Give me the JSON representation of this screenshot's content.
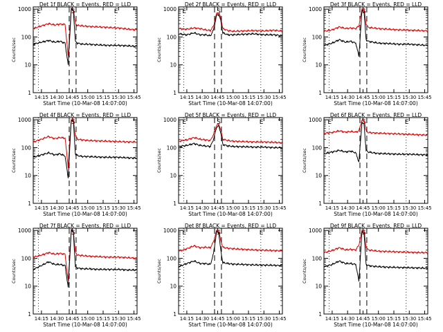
{
  "colors": {
    "events": "#000000",
    "lld": "#e00000",
    "axis": "#000000",
    "background": "#ffffff"
  },
  "chart_data": [
    {
      "type": "line",
      "title": "Det 1f BLACK = Events, RED = LLD",
      "ylabel": "Counts/sec",
      "xlabel": "Start Time (10-Mar-08 14:07:00)",
      "x_ticks": [
        "14:15",
        "14:30",
        "14:45",
        "15:00",
        "15:15",
        "15:30",
        "15:45"
      ],
      "y_ticks": [
        "1",
        "10",
        "100",
        "1000"
      ],
      "ylim": [
        1,
        1200
      ],
      "yscale": "log",
      "x": [
        "14:07",
        "14:15",
        "14:22",
        "14:28",
        "14:33",
        "14:38",
        "14:41",
        "14:44",
        "14:46",
        "14:48",
        "14:50",
        "14:55",
        "15:00",
        "15:10",
        "15:20",
        "15:30",
        "15:40",
        "15:48"
      ],
      "series": [
        {
          "name": "LLD",
          "values": [
            200,
            250,
            300,
            270,
            290,
            280,
            20,
            1000,
            1000,
            300,
            260,
            250,
            240,
            230,
            220,
            210,
            190,
            180
          ]
        },
        {
          "name": "Events",
          "values": [
            55,
            65,
            75,
            65,
            70,
            60,
            10,
            1000,
            900,
            70,
            60,
            55,
            55,
            52,
            50,
            50,
            48,
            45
          ]
        }
      ],
      "annotations": [
        "E",
        "S",
        "E"
      ]
    },
    {
      "type": "line",
      "title": "Det 2f BLACK = Events, RED = LLD",
      "ylabel": "Counts/sec",
      "xlabel": "Start Time (10-Mar-08 14:07:00)",
      "x_ticks": [
        "14:15",
        "14:30",
        "14:45",
        "15:00",
        "15:15",
        "15:30",
        "15:45"
      ],
      "y_ticks": [
        "1",
        "10",
        "100",
        "1000"
      ],
      "ylim": [
        1,
        1200
      ],
      "yscale": "log",
      "x": [
        "14:07",
        "14:15",
        "14:22",
        "14:28",
        "14:33",
        "14:38",
        "14:41",
        "14:44",
        "14:46",
        "14:48",
        "14:50",
        "14:55",
        "15:00",
        "15:10",
        "15:20",
        "15:30",
        "15:40",
        "15:48"
      ],
      "series": [
        {
          "name": "LLD",
          "values": [
            200,
            190,
            210,
            200,
            180,
            170,
            250,
            700,
            750,
            500,
            200,
            170,
            160,
            165,
            170,
            165,
            175,
            160
          ]
        },
        {
          "name": "Events",
          "values": [
            130,
            120,
            140,
            120,
            120,
            110,
            180,
            600,
            650,
            400,
            140,
            120,
            120,
            125,
            130,
            120,
            120,
            110
          ]
        }
      ],
      "annotations": [
        "E",
        "S",
        "E"
      ]
    },
    {
      "type": "line",
      "title": "Det 3f BLACK = Events, RED = LLD",
      "ylabel": "Counts/sec",
      "xlabel": "Start Time (10-Mar-08 14:07:00)",
      "x_ticks": [
        "14:15",
        "14:30",
        "14:45",
        "15:00",
        "15:15",
        "15:30",
        "15:45"
      ],
      "y_ticks": [
        "1",
        "10",
        "100",
        "1000"
      ],
      "ylim": [
        1,
        1200
      ],
      "yscale": "log",
      "x": [
        "14:07",
        "14:15",
        "14:22",
        "14:28",
        "14:33",
        "14:38",
        "14:41",
        "14:44",
        "14:46",
        "14:48",
        "14:50",
        "14:55",
        "15:00",
        "15:10",
        "15:20",
        "15:30",
        "15:40",
        "15:48"
      ],
      "series": [
        {
          "name": "LLD",
          "values": [
            160,
            180,
            230,
            200,
            210,
            200,
            250,
            1000,
            1000,
            300,
            220,
            210,
            200,
            190,
            180,
            175,
            170,
            165
          ]
        },
        {
          "name": "Events",
          "values": [
            50,
            60,
            80,
            65,
            70,
            60,
            20,
            900,
            800,
            80,
            70,
            65,
            60,
            58,
            55,
            55,
            52,
            50
          ]
        }
      ],
      "annotations": [
        "E",
        "S",
        "E"
      ]
    },
    {
      "type": "line",
      "title": "Det 4f BLACK = Events, RED = LLD",
      "ylabel": "Counts/sec",
      "xlabel": "Start Time (10-Mar-08 14:07:00)",
      "x_ticks": [
        "14:15",
        "14:30",
        "14:45",
        "15:00",
        "15:15",
        "15:30",
        "15:45"
      ],
      "y_ticks": [
        "1",
        "10",
        "100",
        "1000"
      ],
      "ylim": [
        1,
        1200
      ],
      "yscale": "log",
      "x": [
        "14:07",
        "14:15",
        "14:22",
        "14:28",
        "14:33",
        "14:38",
        "14:41",
        "14:44",
        "14:46",
        "14:48",
        "14:50",
        "14:55",
        "15:00",
        "15:10",
        "15:20",
        "15:30",
        "15:40",
        "15:48"
      ],
      "series": [
        {
          "name": "LLD",
          "values": [
            160,
            200,
            250,
            210,
            230,
            220,
            20,
            1000,
            1000,
            270,
            200,
            190,
            180,
            175,
            170,
            165,
            160,
            160
          ]
        },
        {
          "name": "Events",
          "values": [
            45,
            55,
            65,
            55,
            60,
            50,
            8,
            1000,
            900,
            60,
            52,
            48,
            48,
            46,
            45,
            45,
            43,
            42
          ]
        }
      ],
      "annotations": [
        "E",
        "S",
        "E"
      ]
    },
    {
      "type": "line",
      "title": "Det 5f BLACK = Events, RED = LLD",
      "ylabel": "Counts/sec",
      "xlabel": "Start Time (10-Mar-08 14:07:00)",
      "x_ticks": [
        "14:15",
        "14:30",
        "14:45",
        "15:00",
        "15:15",
        "15:30",
        "15:45"
      ],
      "y_ticks": [
        "1",
        "10",
        "100",
        "1000"
      ],
      "ylim": [
        1,
        1200
      ],
      "yscale": "log",
      "x": [
        "14:07",
        "14:15",
        "14:22",
        "14:28",
        "14:33",
        "14:38",
        "14:41",
        "14:44",
        "14:46",
        "14:48",
        "14:50",
        "14:55",
        "15:00",
        "15:10",
        "15:20",
        "15:30",
        "15:40",
        "15:48"
      ],
      "series": [
        {
          "name": "LLD",
          "values": [
            170,
            190,
            230,
            200,
            190,
            180,
            300,
            650,
            700,
            450,
            200,
            180,
            170,
            165,
            160,
            160,
            155,
            150
          ]
        },
        {
          "name": "Events",
          "values": [
            110,
            120,
            140,
            120,
            115,
            110,
            200,
            550,
            600,
            350,
            130,
            115,
            110,
            108,
            105,
            105,
            100,
            100
          ]
        }
      ],
      "annotations": [
        "E",
        "S",
        "E"
      ]
    },
    {
      "type": "line",
      "title": "Det 6f BLACK = Events, RED = LLD",
      "ylabel": "Counts/sec",
      "xlabel": "Start Time (10-Mar-08 14:07:00)",
      "x_ticks": [
        "14:15",
        "14:30",
        "14:45",
        "15:00",
        "15:15",
        "15:30",
        "15:45"
      ],
      "y_ticks": [
        "1",
        "10",
        "100",
        "1000"
      ],
      "ylim": [
        1,
        1200
      ],
      "yscale": "log",
      "x": [
        "14:07",
        "14:15",
        "14:22",
        "14:28",
        "14:33",
        "14:38",
        "14:41",
        "14:44",
        "14:46",
        "14:48",
        "14:50",
        "14:55",
        "15:00",
        "15:10",
        "15:20",
        "15:30",
        "15:40",
        "15:48"
      ],
      "series": [
        {
          "name": "LLD",
          "values": [
            330,
            350,
            400,
            360,
            380,
            360,
            400,
            1000,
            1000,
            400,
            350,
            340,
            330,
            320,
            310,
            300,
            290,
            280
          ]
        },
        {
          "name": "Events",
          "values": [
            60,
            70,
            80,
            70,
            75,
            65,
            30,
            800,
            700,
            80,
            70,
            65,
            62,
            60,
            58,
            58,
            56,
            55
          ]
        }
      ],
      "annotations": [
        "E",
        "S",
        "E"
      ]
    },
    {
      "type": "line",
      "title": "Det 7f BLACK = Events, RED = LLD",
      "ylabel": "Counts/sec",
      "xlabel": "Start Time (10-Mar-08 14:07:00)",
      "x_ticks": [
        "14:15",
        "14:30",
        "14:45",
        "15:00",
        "15:15",
        "15:30",
        "15:45"
      ],
      "y_ticks": [
        "1",
        "10",
        "100",
        "1000"
      ],
      "ylim": [
        1,
        1200
      ],
      "yscale": "log",
      "x": [
        "14:07",
        "14:15",
        "14:22",
        "14:28",
        "14:33",
        "14:38",
        "14:41",
        "14:44",
        "14:46",
        "14:48",
        "14:50",
        "14:55",
        "15:00",
        "15:10",
        "15:20",
        "15:30",
        "15:40",
        "15:48"
      ],
      "series": [
        {
          "name": "LLD",
          "values": [
            110,
            130,
            160,
            140,
            150,
            140,
            15,
            1000,
            1000,
            170,
            130,
            125,
            120,
            115,
            110,
            110,
            105,
            100
          ]
        },
        {
          "name": "Events",
          "values": [
            40,
            55,
            75,
            60,
            60,
            55,
            9,
            1000,
            900,
            50,
            45,
            42,
            42,
            40,
            40,
            40,
            38,
            38
          ]
        }
      ],
      "annotations": [
        "E",
        "S",
        "E"
      ]
    },
    {
      "type": "line",
      "title": "Det 8f BLACK = Events, RED = LLD",
      "ylabel": "Counts/sec",
      "xlabel": "Start Time (10-Mar-08 14:07:00)",
      "x_ticks": [
        "14:15",
        "14:30",
        "14:45",
        "15:00",
        "15:15",
        "15:30",
        "15:45"
      ],
      "y_ticks": [
        "1",
        "10",
        "100",
        "1000"
      ],
      "ylim": [
        1,
        1200
      ],
      "yscale": "log",
      "x": [
        "14:07",
        "14:15",
        "14:22",
        "14:28",
        "14:33",
        "14:38",
        "14:41",
        "14:44",
        "14:46",
        "14:48",
        "14:50",
        "14:55",
        "15:00",
        "15:10",
        "15:20",
        "15:30",
        "15:40",
        "15:48"
      ],
      "series": [
        {
          "name": "LLD",
          "values": [
            180,
            220,
            280,
            240,
            250,
            240,
            400,
            1000,
            1000,
            450,
            250,
            230,
            220,
            210,
            200,
            195,
            190,
            185
          ]
        },
        {
          "name": "Events",
          "values": [
            50,
            65,
            80,
            65,
            65,
            60,
            150,
            900,
            850,
            200,
            70,
            65,
            62,
            60,
            58,
            57,
            56,
            55
          ]
        }
      ],
      "annotations": [
        "E",
        "S",
        "E"
      ]
    },
    {
      "type": "line",
      "title": "Det 9f BLACK = Events, RED = LLD",
      "ylabel": "Counts/sec",
      "xlabel": "Start Time (10-Mar-08 14:07:00)",
      "x_ticks": [
        "14:15",
        "14:30",
        "14:45",
        "15:00",
        "15:15",
        "15:30",
        "15:45"
      ],
      "y_ticks": [
        "1",
        "10",
        "100",
        "1000"
      ],
      "ylim": [
        1,
        1200
      ],
      "yscale": "log",
      "x": [
        "14:07",
        "14:15",
        "14:22",
        "14:28",
        "14:33",
        "14:38",
        "14:41",
        "14:44",
        "14:46",
        "14:48",
        "14:50",
        "14:55",
        "15:00",
        "15:10",
        "15:20",
        "15:30",
        "15:40",
        "15:48"
      ],
      "series": [
        {
          "name": "LLD",
          "values": [
            160,
            190,
            240,
            200,
            210,
            200,
            300,
            1000,
            1000,
            260,
            200,
            190,
            180,
            175,
            170,
            165,
            160,
            160
          ]
        },
        {
          "name": "Events",
          "values": [
            50,
            60,
            80,
            65,
            65,
            60,
            15,
            900,
            800,
            60,
            55,
            52,
            50,
            48,
            47,
            46,
            45,
            44
          ]
        }
      ],
      "annotations": [
        "E",
        "S",
        "E"
      ]
    }
  ]
}
